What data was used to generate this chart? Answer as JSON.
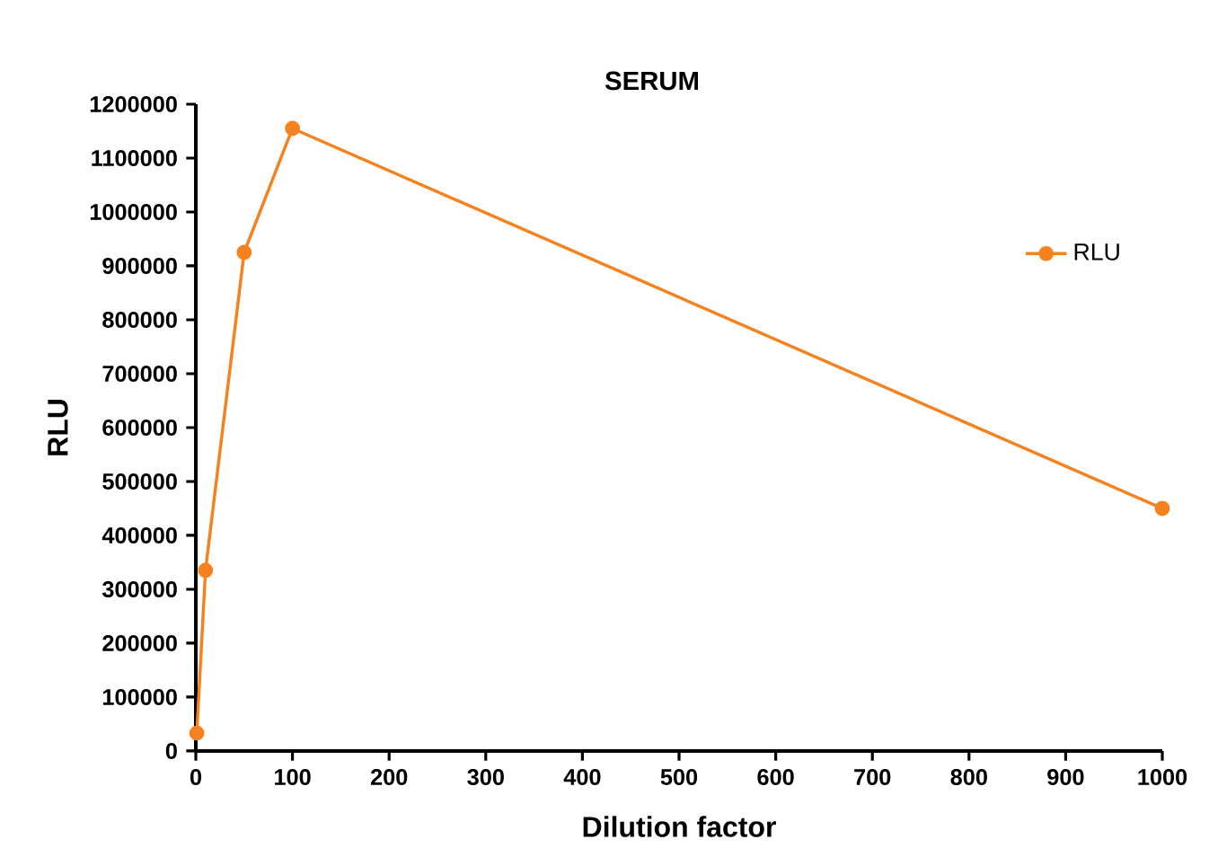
{
  "chart_data": {
    "type": "line",
    "title": "SERUM",
    "xlabel": "Dilution factor",
    "ylabel": "RLU",
    "x": [
      1,
      10,
      50,
      100,
      1000
    ],
    "series": [
      {
        "name": "RLU",
        "color": "#f5821f",
        "values": [
          33000,
          335000,
          925000,
          1155000,
          450000
        ]
      }
    ],
    "xlim": [
      0,
      1000
    ],
    "xticks": [
      0,
      100,
      200,
      300,
      400,
      500,
      600,
      700,
      800,
      900,
      1000
    ],
    "ylim": [
      0,
      1200000
    ],
    "yticks": [
      0,
      100000,
      200000,
      300000,
      400000,
      500000,
      600000,
      700000,
      800000,
      900000,
      1000000,
      1100000,
      1200000
    ],
    "grid": false,
    "legend": "top right",
    "marker": "circle",
    "line_style": "solid"
  }
}
